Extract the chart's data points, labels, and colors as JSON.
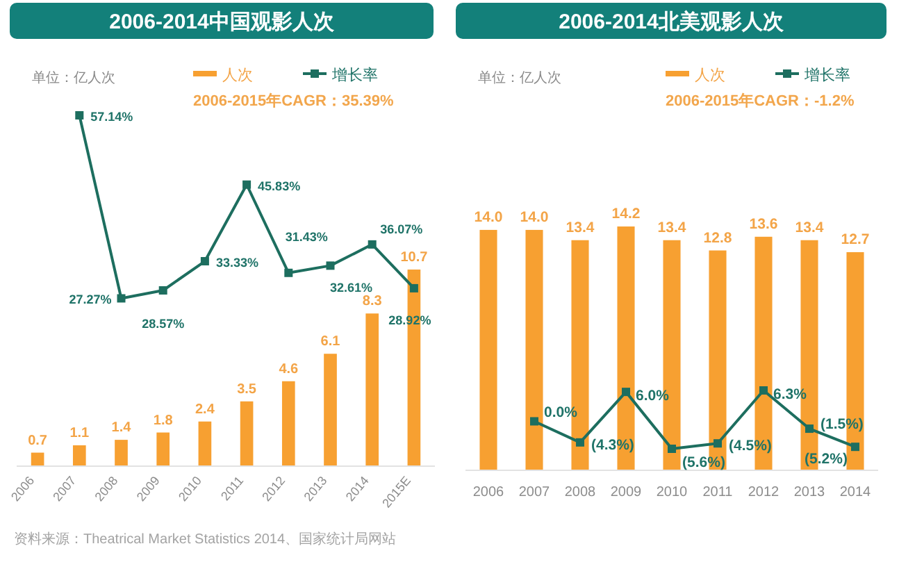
{
  "chart_data": [
    {
      "type": "bar",
      "title": "2006-2014中国观影人次",
      "categories": [
        "2006",
        "2007",
        "2008",
        "2009",
        "2010",
        "2011",
        "2012",
        "2013",
        "2014",
        "2015E"
      ],
      "series": [
        {
          "name": "人次",
          "axis": "y2",
          "color": "#f7a031",
          "values": [
            0.7,
            1.1,
            1.4,
            1.8,
            2.4,
            3.5,
            4.6,
            6.1,
            8.3,
            10.7
          ],
          "value_labels": [
            "0.7",
            "1.1",
            "1.4",
            "1.8",
            "2.4",
            "3.5",
            "4.6",
            "6.1",
            "8.3",
            "10.7"
          ]
        },
        {
          "name": "增长率",
          "type": "line",
          "marker": "square",
          "color": "#1d6e5f",
          "values": [
            null,
            57.14,
            27.27,
            28.57,
            33.33,
            45.83,
            31.43,
            32.61,
            36.07,
            28.92
          ],
          "value_labels": [
            null,
            "57.14%",
            "27.27%",
            "28.57%",
            "33.33%",
            "45.83%",
            "31.43%",
            "32.61%",
            "36.07%",
            "28.92%"
          ]
        }
      ],
      "ylim": [
        0,
        57.14
      ],
      "tick_labels": "x",
      "legend": "top right",
      "annotations": [
        "单位：亿人次",
        "2006-2015年CAGR：35.39%",
        "资料来源：Theatrical Market Statistics 2014、国家统计局网站"
      ]
    },
    {
      "type": "bar",
      "title": "2006-2014北美观影人次",
      "categories": [
        "2006",
        "2007",
        "2008",
        "2009",
        "2010",
        "2011",
        "2012",
        "2013",
        "2014"
      ],
      "series": [
        {
          "name": "人次",
          "color": "#f7a031",
          "values": [
            14.0,
            14.0,
            13.4,
            14.2,
            13.4,
            12.8,
            13.6,
            13.4,
            12.7
          ],
          "value_labels": [
            "14.0",
            "14.0",
            "13.4",
            "14.2",
            "13.4",
            "12.8",
            "13.6",
            "13.4",
            "12.7"
          ]
        },
        {
          "name": "增长率",
          "type": "line",
          "axis": "y2",
          "marker": "square",
          "color": "#1d6e5f",
          "values": [
            null,
            0.0,
            -4.3,
            6.0,
            -5.6,
            -4.5,
            6.3,
            -1.5,
            -5.2
          ],
          "value_labels": [
            null,
            "0.0%",
            "(4.3%)",
            "6.0%",
            "(5.6%)",
            "(4.5%)",
            "6.3%",
            "(1.5%)",
            "(5.2%)"
          ]
        }
      ],
      "tick_labels": "x",
      "legend": "top right",
      "annotations": [
        "单位：亿人次",
        "2006-2015年CAGR：-1.2%"
      ]
    }
  ]
}
